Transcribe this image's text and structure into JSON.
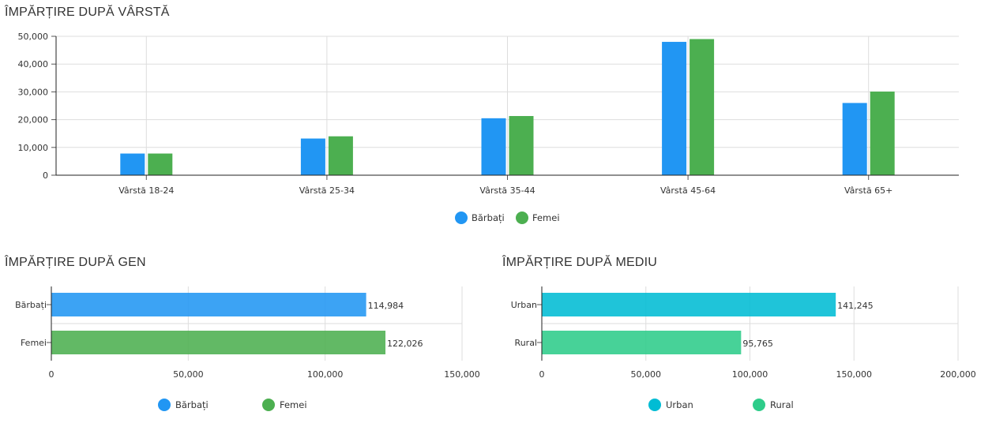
{
  "sections": {
    "age_title": "ÎMPĂRȚIRE DUPĂ VÂRSTĂ",
    "gender_title": "ÎMPĂRȚIRE DUPĂ GEN",
    "env_title": "ÎMPĂRȚIRE DUPĂ MEDIU"
  },
  "chart_data": [
    {
      "type": "bar",
      "orientation": "vertical",
      "title": "ÎMPĂRȚIRE DUPĂ VÂRSTĂ",
      "categories": [
        "Vârstă 18-24",
        "Vârstă 25-34",
        "Vârstă 35-44",
        "Vârstă 45-64",
        "Vârstă 65+"
      ],
      "series": [
        {
          "name": "Bărbați",
          "color": "#2196f3",
          "values": [
            7800,
            13200,
            20500,
            48000,
            26000
          ]
        },
        {
          "name": "Femei",
          "color": "#4caf50",
          "values": [
            7800,
            14000,
            21300,
            49000,
            30100
          ]
        }
      ],
      "ylim": [
        0,
        50000
      ],
      "yticks": [
        0,
        10000,
        20000,
        30000,
        40000,
        50000
      ],
      "ytick_labels": [
        "0",
        "10,000",
        "20,000",
        "30,000",
        "40,000",
        "50,000"
      ],
      "grid": true,
      "legend": "bottom-center"
    },
    {
      "type": "bar",
      "orientation": "horizontal",
      "title": "ÎMPĂRȚIRE DUPĂ GEN",
      "categories": [
        "Bărbați",
        "Femei"
      ],
      "values": [
        114984,
        122026
      ],
      "value_labels": [
        "114,984",
        "122,026"
      ],
      "colors": [
        "#2196f3",
        "#4caf50"
      ],
      "xlim": [
        0,
        150000
      ],
      "xticks": [
        0,
        50000,
        100000,
        150000
      ],
      "xtick_labels": [
        "0",
        "50,000",
        "100,000",
        "150,000"
      ],
      "legend_items": [
        {
          "name": "Bărbați",
          "color": "#2196f3"
        },
        {
          "name": "Femei",
          "color": "#4caf50"
        }
      ],
      "grid": true,
      "legend": "bottom-center"
    },
    {
      "type": "bar",
      "orientation": "horizontal",
      "title": "ÎMPĂRȚIRE DUPĂ MEDIU",
      "categories": [
        "Urban",
        "Rural"
      ],
      "values": [
        141245,
        95765
      ],
      "value_labels": [
        "141,245",
        "95,765"
      ],
      "colors": [
        "#00bcd4",
        "#2ecc8a"
      ],
      "xlim": [
        0,
        200000
      ],
      "xticks": [
        0,
        50000,
        100000,
        150000,
        200000
      ],
      "xtick_labels": [
        "0",
        "50,000",
        "100,000",
        "150,000",
        "200,000"
      ],
      "legend_items": [
        {
          "name": "Urban",
          "color": "#00bcd4"
        },
        {
          "name": "Rural",
          "color": "#2ecc8a"
        }
      ],
      "grid": true,
      "legend": "bottom-center"
    }
  ]
}
